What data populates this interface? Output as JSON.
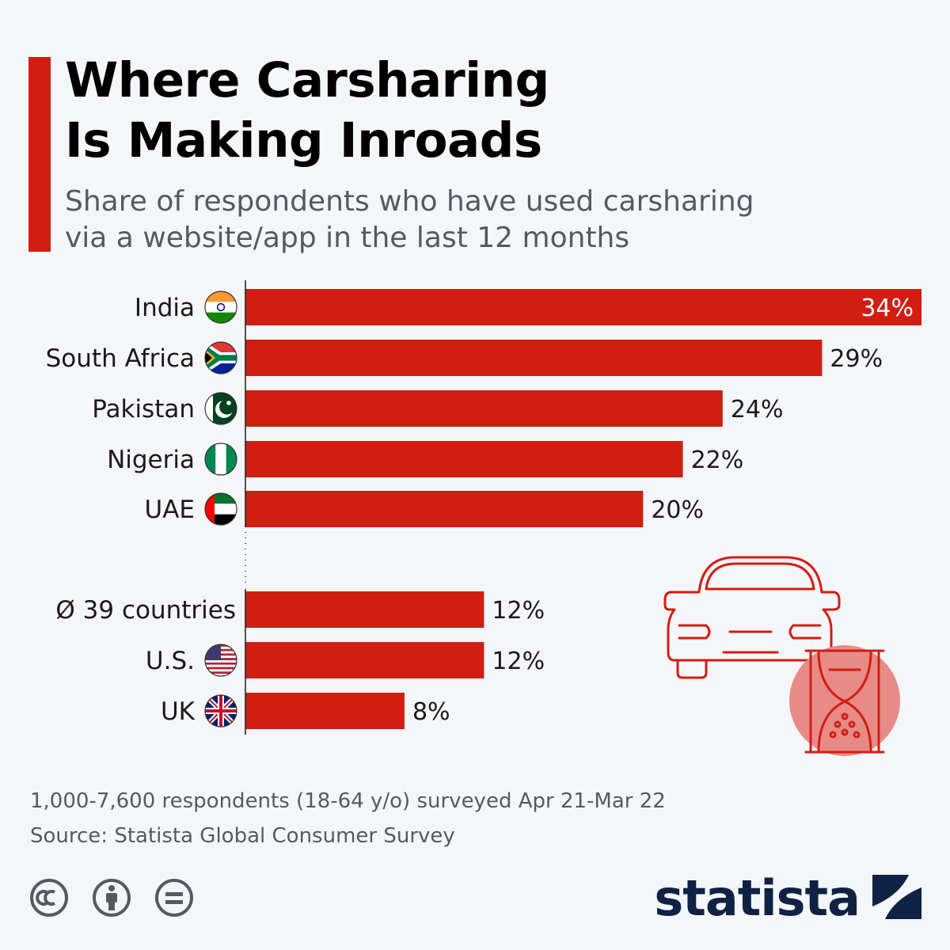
{
  "title_line1": "Where Carsharing",
  "title_line2": "Is Making Inroads",
  "subtitle_line1": "Share of respondents who have used carsharing",
  "subtitle_line2": "via a website/app in the last 12 months",
  "footnote_line1": "1,000-7,600 respondents (18-64 y/o) surveyed Apr 21-Mar 22",
  "footnote_line2": "Source: Statista Global Consumer Survey",
  "brand": "statista",
  "colors": {
    "bar": "#d21e12",
    "accent": "#d21e12",
    "brand": "#0f2245"
  },
  "icons": [
    "cc-icon",
    "attribution-icon",
    "no-derivatives-icon",
    "car-icon",
    "hourglass-icon"
  ],
  "chart_data": {
    "type": "bar",
    "orientation": "horizontal",
    "categories": [
      "India",
      "South Africa",
      "Pakistan",
      "Nigeria",
      "UAE",
      "Ø 39 countries",
      "U.S.",
      "UK"
    ],
    "values": [
      34,
      29,
      24,
      22,
      20,
      12,
      12,
      8
    ],
    "labels": [
      "34%",
      "29%",
      "24%",
      "22%",
      "20%",
      "12%",
      "12%",
      "8%"
    ],
    "flags": [
      "india",
      "south-africa",
      "pakistan",
      "nigeria",
      "uae",
      "",
      "usa",
      "uk"
    ],
    "xlim": [
      0,
      34
    ],
    "unit": "%",
    "grid": false
  }
}
